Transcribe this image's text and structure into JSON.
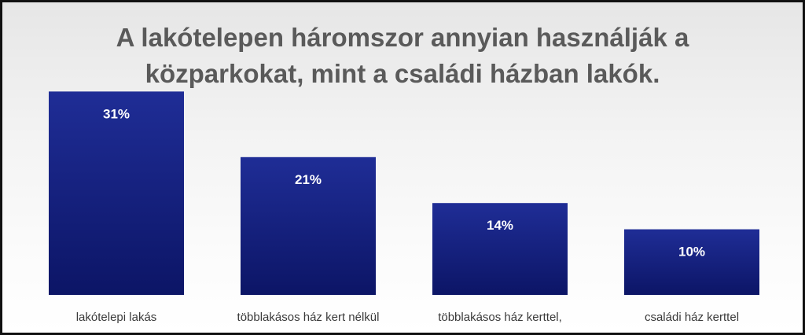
{
  "title": {
    "line1": "A lakótelepen háromszor annyian használják a",
    "line2": "közparkokat, mint a családi házban lakók."
  },
  "chart_data": {
    "type": "bar",
    "categories": [
      "lakótelepi lakás",
      "többlakásos ház kert nélkül",
      "többlakásos ház kerttel,",
      "családi ház kerttel"
    ],
    "values": [
      31,
      21,
      14,
      10
    ],
    "value_labels": [
      "31%",
      "21%",
      "14%",
      "10%"
    ],
    "unit": "%",
    "ylim": [
      0,
      35
    ],
    "grid": false,
    "legend": "none",
    "bar_color": "#1a237e"
  }
}
